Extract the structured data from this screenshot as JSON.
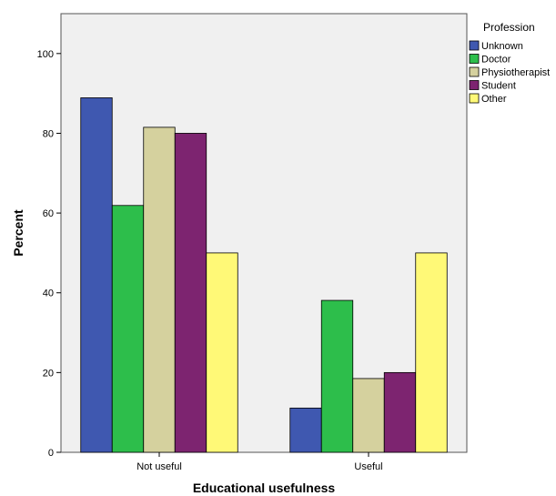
{
  "chart_data": {
    "type": "bar",
    "categories": [
      "Not useful",
      "Useful"
    ],
    "series": [
      {
        "name": "Unknown",
        "color": "#3F58B0",
        "values": [
          88.9,
          11.1
        ]
      },
      {
        "name": "Doctor",
        "color": "#2DBE4B",
        "values": [
          61.9,
          38.1
        ]
      },
      {
        "name": "Physiotherapist",
        "color": "#D5D19E",
        "values": [
          81.5,
          18.5
        ]
      },
      {
        "name": "Student",
        "color": "#7D2470",
        "values": [
          80.0,
          20.0
        ]
      },
      {
        "name": "Other",
        "color": "#FFF977",
        "values": [
          50.0,
          50.0
        ]
      }
    ],
    "xlabel": "Educational usefulness",
    "ylabel": "Percent",
    "ylim": [
      0,
      110
    ],
    "yticks": [
      0,
      20,
      40,
      60,
      80,
      100
    ],
    "legend": {
      "title": "Profession",
      "placement": "right"
    },
    "plot_background": "#F0F0F0",
    "grid": false
  }
}
